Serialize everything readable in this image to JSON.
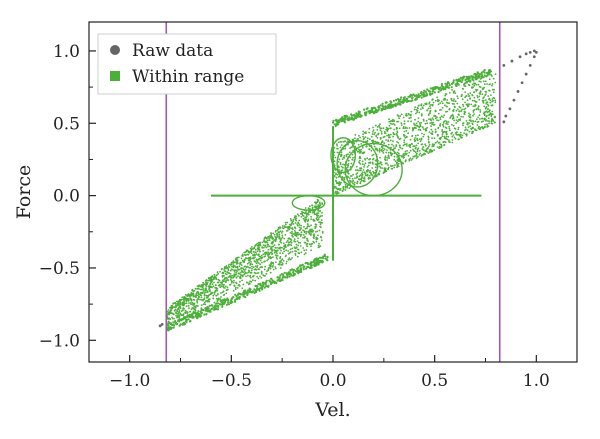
{
  "chart_data": {
    "type": "scatter",
    "title": "",
    "xlabel": "Vel.",
    "ylabel": "Force",
    "xlim": [
      -1.2,
      1.2
    ],
    "ylim": [
      -1.15,
      1.2
    ],
    "xticks": [
      -1.0,
      -0.5,
      0.0,
      0.5,
      1.0
    ],
    "xtick_labels": [
      "−1.0",
      "−0.5",
      "0.0",
      "0.5",
      "1.0"
    ],
    "yticks": [
      -1.0,
      -0.5,
      0.0,
      0.5,
      1.0
    ],
    "ytick_labels": [
      "−1.0",
      "−0.5",
      "0.0",
      "0.5",
      "1.0"
    ],
    "grid": false,
    "legend_position": "top-left",
    "vertical_lines": [
      {
        "x": -0.82,
        "color": "#9b59b6"
      },
      {
        "x": 0.82,
        "color": "#9b59b6"
      }
    ],
    "series": [
      {
        "name": "Raw data",
        "color": "#666666",
        "marker": "circle",
        "points": [
          [
            0.84,
            0.9
          ],
          [
            0.88,
            0.93
          ],
          [
            0.92,
            0.96
          ],
          [
            0.95,
            0.98
          ],
          [
            0.97,
            0.99
          ],
          [
            0.99,
            1.0
          ],
          [
            1.0,
            0.99
          ],
          [
            0.99,
            0.96
          ],
          [
            0.97,
            0.9
          ],
          [
            0.95,
            0.84
          ],
          [
            0.93,
            0.78
          ],
          [
            0.91,
            0.72
          ],
          [
            0.89,
            0.66
          ],
          [
            0.87,
            0.6
          ],
          [
            0.85,
            0.55
          ],
          [
            0.84,
            0.51
          ],
          [
            -0.84,
            -0.89
          ],
          [
            -0.85,
            -0.9
          ]
        ]
      },
      {
        "name": "Within range",
        "color": "#4caf3a",
        "marker": "square",
        "segments": [
          [
            [
              -0.6,
              0.0
            ],
            [
              0.0,
              0.0
            ]
          ],
          [
            [
              0.0,
              0.0
            ],
            [
              0.73,
              0.0
            ]
          ],
          [
            [
              0.0,
              0.0
            ],
            [
              0.0,
              0.48
            ]
          ],
          [
            [
              0.0,
              0.0
            ],
            [
              0.0,
              -0.45
            ]
          ]
        ],
        "clusters": [
          {
            "x": [
              -0.82,
              -0.05
            ],
            "y_low": [
              -0.92,
              -0.35
            ],
            "y_high": [
              -0.78,
              0.0
            ]
          },
          {
            "x": [
              0.0,
              0.8
            ],
            "y_low": [
              0.0,
              0.5
            ],
            "y_high": [
              0.35,
              0.87
            ]
          }
        ],
        "loops": [
          {
            "cx": 0.05,
            "cy": 0.28,
            "rx": 0.06,
            "ry": 0.12
          },
          {
            "cx": 0.12,
            "cy": 0.22,
            "rx": 0.1,
            "ry": 0.16
          },
          {
            "cx": 0.2,
            "cy": 0.18,
            "rx": 0.14,
            "ry": 0.18
          },
          {
            "cx": -0.12,
            "cy": -0.05,
            "rx": 0.08,
            "ry": 0.05
          }
        ]
      }
    ]
  }
}
